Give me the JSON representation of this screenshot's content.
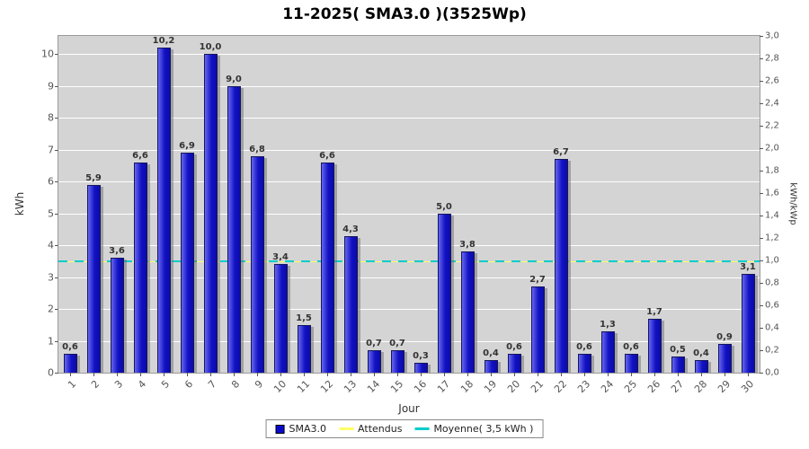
{
  "title": "11-2025( SMA3.0 )(3525Wp)",
  "axes": {
    "left_label": "kWh",
    "right_label": "kWh/kWp",
    "x_label": "Jour"
  },
  "legend": {
    "items": [
      {
        "label": "SMA3.0",
        "marker": "square",
        "color": "#0A0ACF"
      },
      {
        "label": "Attendus",
        "marker": "line",
        "color": "#FFFF66"
      },
      {
        "label": "Moyenne( 3,5 kWh )",
        "marker": "line",
        "color": "#00CCCC"
      }
    ]
  },
  "chart_data": {
    "type": "bar",
    "title": "11-2025( SMA3.0 )(3525Wp)",
    "xlabel": "Jour",
    "ylabel": "kWh",
    "y2label": "kWh/kWp",
    "categories": [
      1,
      2,
      3,
      4,
      5,
      6,
      7,
      8,
      9,
      10,
      11,
      12,
      13,
      14,
      15,
      16,
      17,
      18,
      19,
      20,
      21,
      22,
      23,
      24,
      25,
      26,
      27,
      28,
      29,
      30
    ],
    "series": [
      {
        "name": "SMA3.0",
        "values": [
          0.6,
          5.9,
          3.6,
          6.6,
          10.2,
          6.9,
          10.0,
          9.0,
          6.8,
          3.4,
          1.5,
          6.6,
          4.3,
          0.7,
          0.7,
          0.3,
          5.0,
          3.8,
          0.4,
          0.6,
          2.7,
          6.7,
          0.6,
          1.3,
          0.6,
          1.7,
          0.5,
          0.4,
          0.9,
          3.1
        ],
        "labels": [
          "0,6",
          "5,9",
          "3,6",
          "6,6",
          "10,2",
          "6,9",
          "10,0",
          "9,0",
          "6,8",
          "3,4",
          "1,5",
          "6,6",
          "4,3",
          "0,7",
          "0,7",
          "0,3",
          "5,0",
          "3,8",
          "0,4",
          "0,6",
          "2,7",
          "6,7",
          "0,6",
          "1,3",
          "0,6",
          "1,7",
          "0,5",
          "0,4",
          "0,9",
          "3,1"
        ]
      }
    ],
    "reference_lines": [
      {
        "name": "Attendus",
        "value": 3.5,
        "color": "#FFFF66",
        "style": "solid"
      },
      {
        "name": "Moyenne( 3,5 kWh )",
        "value": 3.5,
        "color": "#00CCCC",
        "style": "dashed"
      }
    ],
    "ylim": [
      0,
      10.575
    ],
    "y2lim": [
      0,
      3.0
    ],
    "left_ticks": [
      0,
      1,
      2,
      3,
      4,
      5,
      6,
      7,
      8,
      9,
      10
    ],
    "right_ticks": [
      "0,0",
      "0,2",
      "0,4",
      "0,6",
      "0,8",
      "1,0",
      "1,2",
      "1,4",
      "1,6",
      "1,8",
      "2,0",
      "2,2",
      "2,4",
      "2,6",
      "2,8",
      "3,0"
    ],
    "grid": true,
    "legend_position": "bottom",
    "bar_color": "#1212C4",
    "plot_background": "#D4D4D4"
  }
}
